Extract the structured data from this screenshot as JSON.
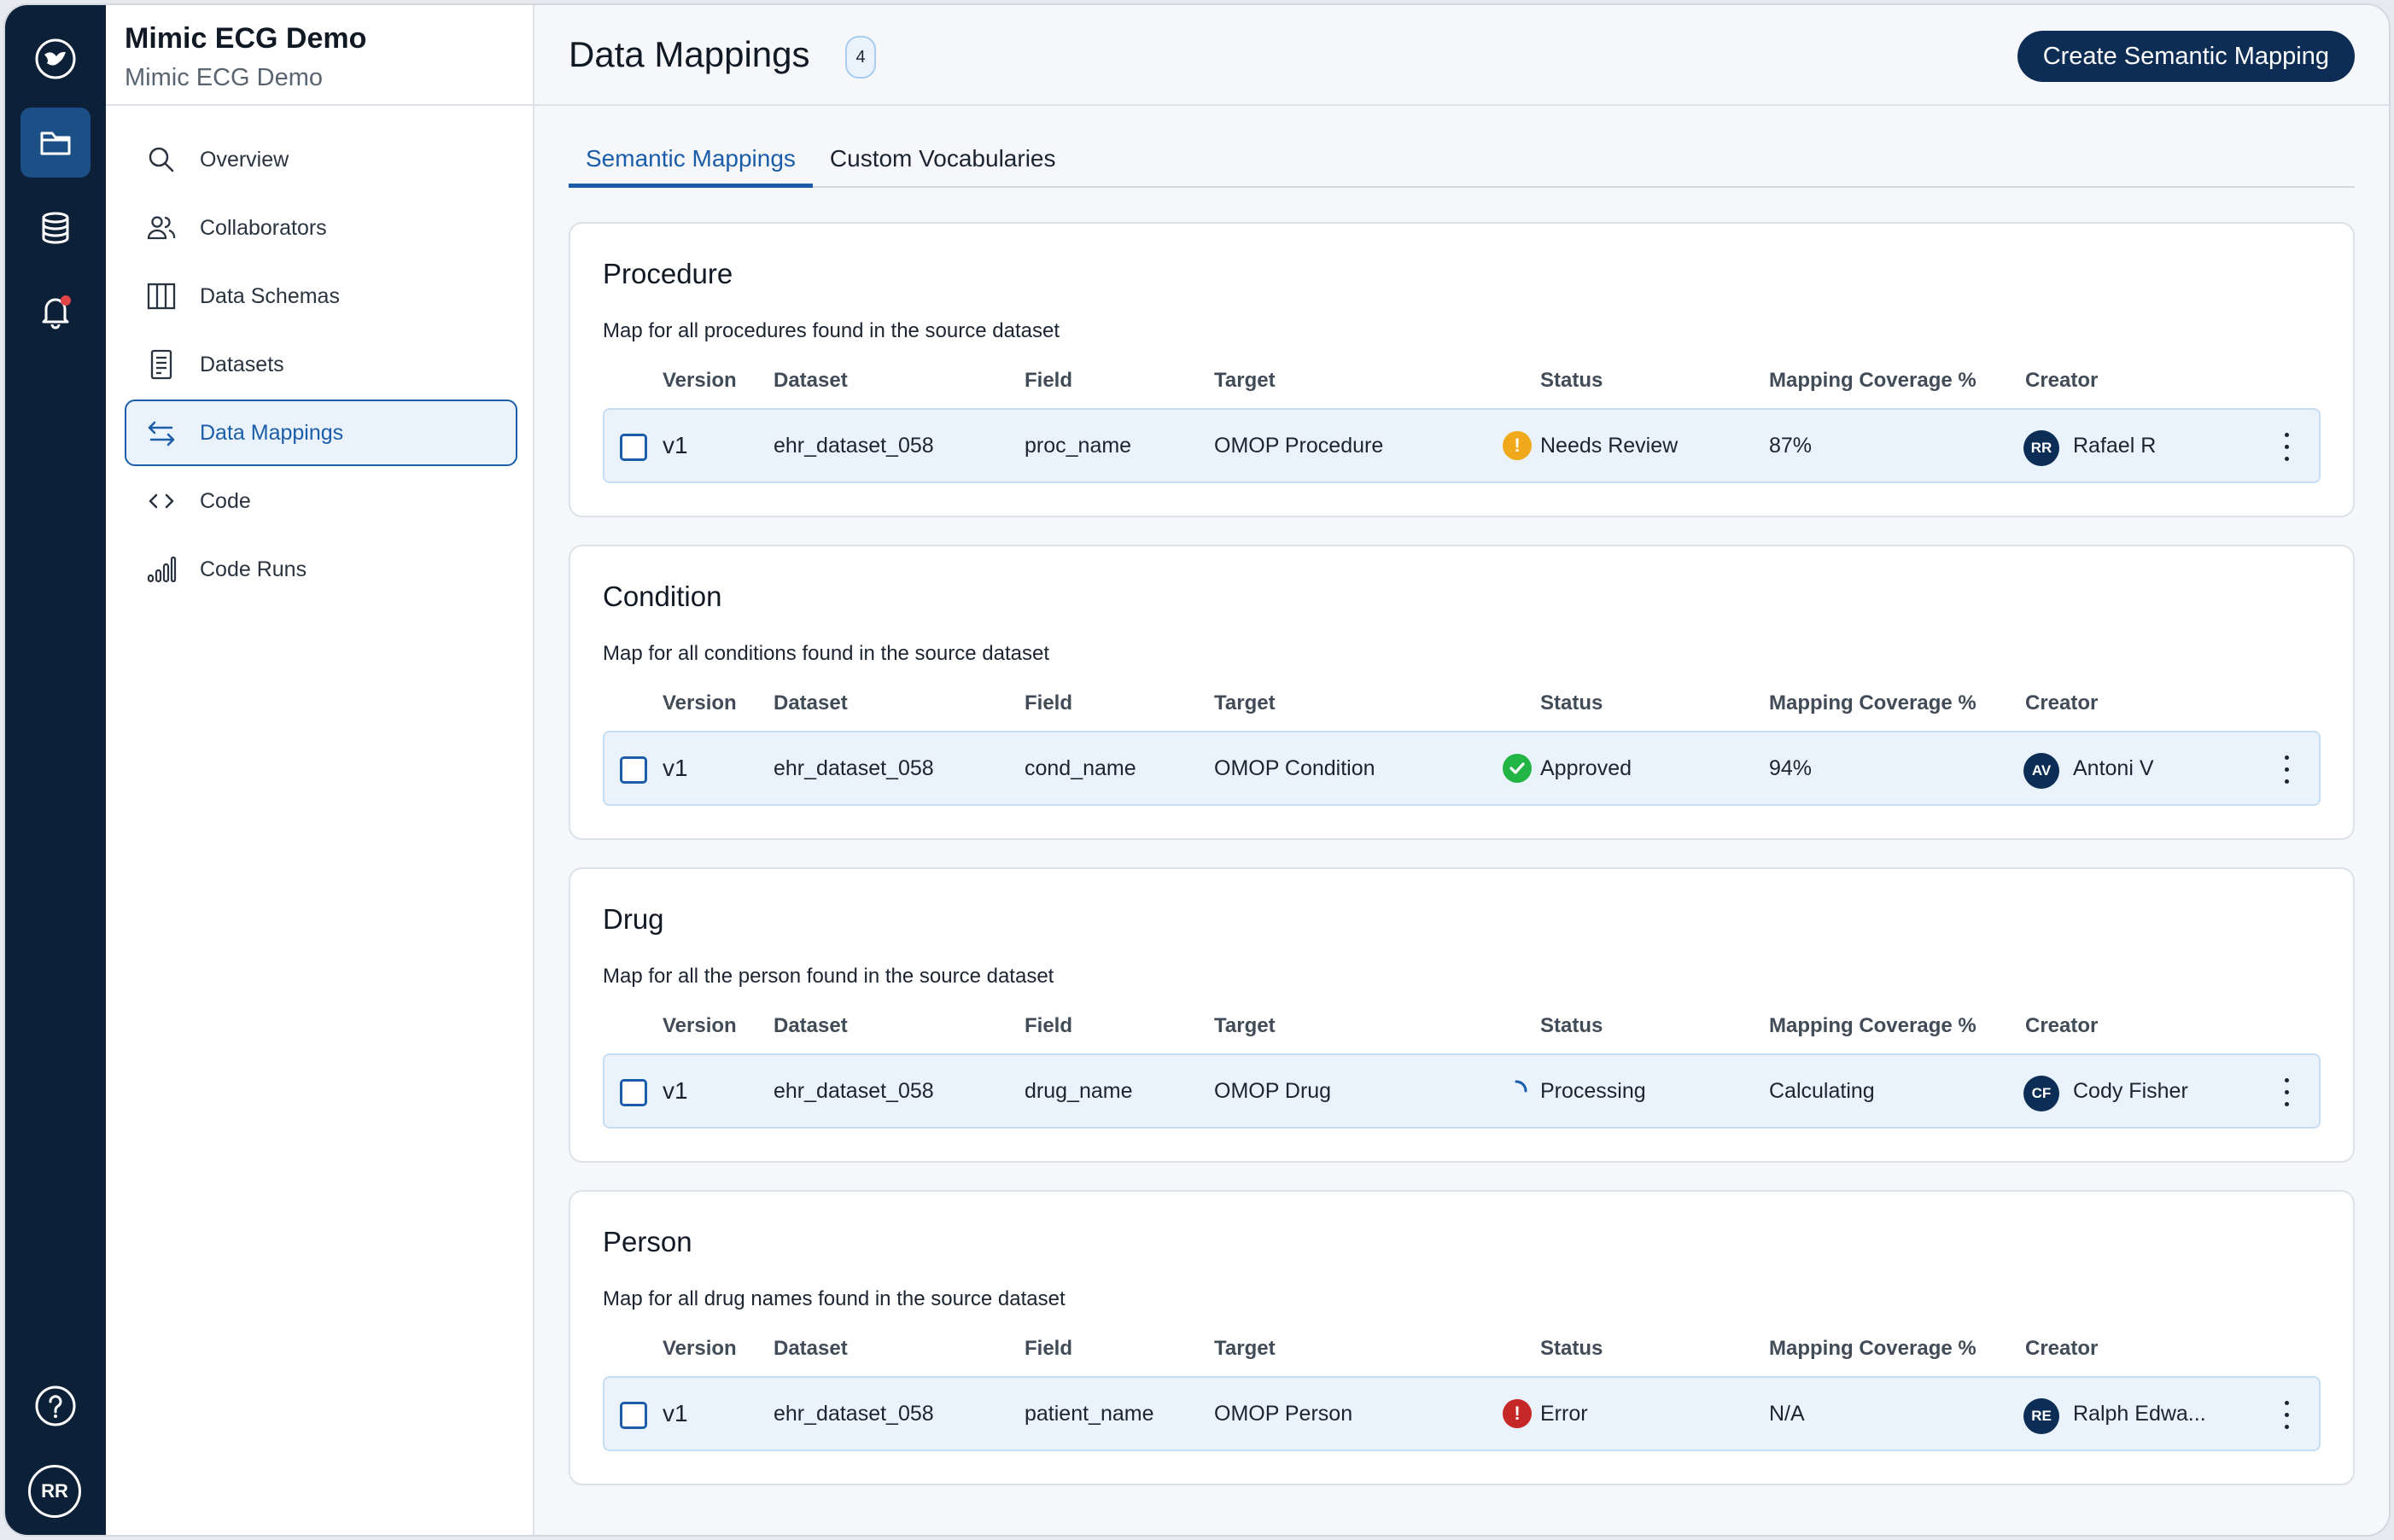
{
  "rail": {
    "avatar_initials": "RR"
  },
  "project": {
    "title": "Mimic ECG Demo",
    "subtitle": "Mimic ECG Demo"
  },
  "nav": [
    {
      "label": "Overview",
      "icon": "search-icon"
    },
    {
      "label": "Collaborators",
      "icon": "users-icon"
    },
    {
      "label": "Data Schemas",
      "icon": "columns-icon"
    },
    {
      "label": "Datasets",
      "icon": "file-list-icon"
    },
    {
      "label": "Data Mappings",
      "icon": "swap-arrows-icon",
      "active": true
    },
    {
      "label": "Code",
      "icon": "code-icon"
    },
    {
      "label": "Code Runs",
      "icon": "bar-chart-icon"
    }
  ],
  "header": {
    "title": "Data Mappings",
    "count": "4",
    "create_button": "Create Semantic Mapping"
  },
  "tabs": [
    {
      "label": "Semantic Mappings",
      "active": true
    },
    {
      "label": "Custom Vocabularies",
      "active": false
    }
  ],
  "columns": {
    "version": "Version",
    "dataset": "Dataset",
    "field": "Field",
    "target": "Target",
    "status": "Status",
    "coverage": "Mapping Coverage %",
    "creator": "Creator"
  },
  "mappings": [
    {
      "title": "Procedure",
      "description": "Map for all procedures found in the source dataset",
      "version": "v1",
      "dataset": "ehr_dataset_058",
      "field": "proc_name",
      "target": "OMOP Procedure",
      "status": "Needs Review",
      "status_kind": "warning",
      "coverage": "87%",
      "creator_initials": "RR",
      "creator": "Rafael R"
    },
    {
      "title": "Condition",
      "description": "Map for all conditions found in the source dataset",
      "version": "v1",
      "dataset": "ehr_dataset_058",
      "field": "cond_name",
      "target": "OMOP Condition",
      "status": "Approved",
      "status_kind": "success",
      "coverage": "94%",
      "creator_initials": "AV",
      "creator": "Antoni V"
    },
    {
      "title": "Drug",
      "description": "Map for all the person found in the source dataset",
      "version": "v1",
      "dataset": "ehr_dataset_058",
      "field": "drug_name",
      "target": "OMOP Drug",
      "status": "Processing",
      "status_kind": "processing",
      "coverage": "Calculating",
      "creator_initials": "CF",
      "creator": "Cody Fisher"
    },
    {
      "title": "Person",
      "description": "Map for all drug names found in the source dataset",
      "version": "v1",
      "dataset": "ehr_dataset_058",
      "field": "patient_name",
      "target": "OMOP Person",
      "status": "Error",
      "status_kind": "error",
      "coverage": "N/A",
      "creator_initials": "RE",
      "creator": "Ralph Edwa..."
    }
  ],
  "colors": {
    "rail_bg": "#0c2038",
    "accent": "#1b5da8",
    "warning": "#f0a91a",
    "success": "#22b545",
    "error": "#c62828",
    "notification_dot": "#e04545"
  }
}
